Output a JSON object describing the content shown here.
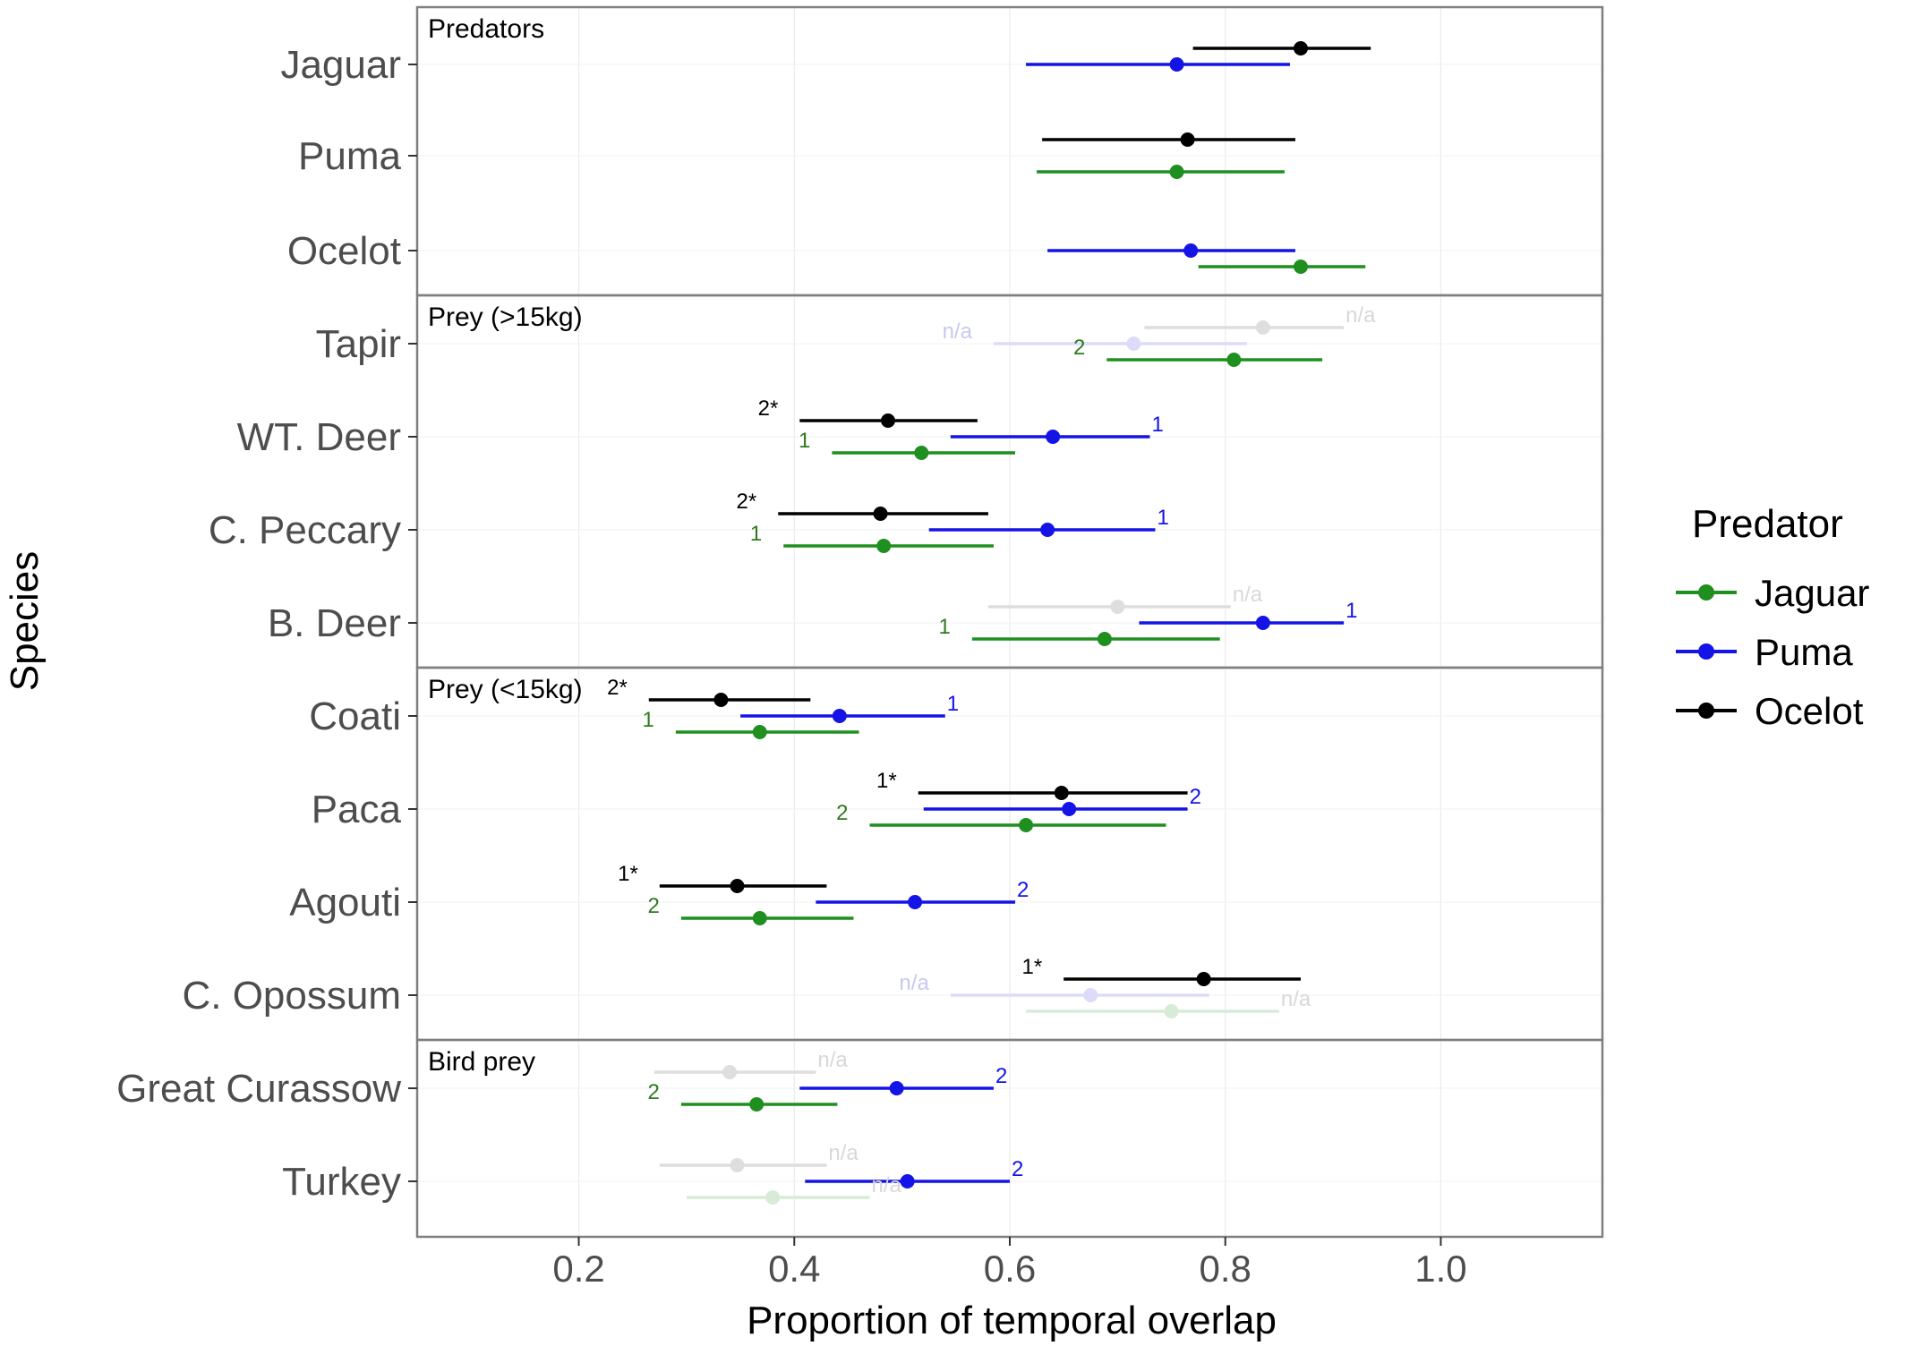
{
  "chart_data": {
    "type": "dot-interval",
    "xlabel": "Proportion of temporal overlap",
    "ylabel": "Species",
    "xlim": [
      0.05,
      1.15
    ],
    "xticks": [
      "0.2",
      "0.4",
      "0.6",
      "0.8",
      "1.0"
    ],
    "xtick_values": [
      0.2,
      0.4,
      0.6,
      0.8,
      1.0
    ],
    "legend": {
      "title": "Predator",
      "position": "right",
      "entries": [
        {
          "name": "Jaguar",
          "color": "#1f8f1f"
        },
        {
          "name": "Puma",
          "color": "#1414e6"
        },
        {
          "name": "Ocelot",
          "color": "#000000"
        }
      ]
    },
    "panels": [
      {
        "label": "Predators",
        "species": [
          {
            "name": "Jaguar",
            "points": [
              {
                "predator": "Ocelot",
                "mean": 0.87,
                "low": 0.77,
                "high": 0.935,
                "faded": false,
                "label": ""
              },
              {
                "predator": "Puma",
                "mean": 0.755,
                "low": 0.615,
                "high": 0.86,
                "faded": false,
                "label": ""
              }
            ]
          },
          {
            "name": "Puma",
            "points": [
              {
                "predator": "Ocelot",
                "mean": 0.765,
                "low": 0.63,
                "high": 0.865,
                "faded": false,
                "label": ""
              },
              {
                "predator": "Jaguar",
                "mean": 0.755,
                "low": 0.625,
                "high": 0.855,
                "faded": false,
                "label": ""
              }
            ]
          },
          {
            "name": "Ocelot",
            "points": [
              {
                "predator": "Puma",
                "mean": 0.768,
                "low": 0.635,
                "high": 0.865,
                "faded": false,
                "label": ""
              },
              {
                "predator": "Jaguar",
                "mean": 0.87,
                "low": 0.775,
                "high": 0.93,
                "faded": false,
                "label": ""
              }
            ]
          }
        ]
      },
      {
        "label": "Prey (>15kg)",
        "species": [
          {
            "name": "Tapir",
            "points": [
              {
                "predator": "Ocelot",
                "mean": 0.835,
                "low": 0.725,
                "high": 0.91,
                "faded": true,
                "label": "n/a"
              },
              {
                "predator": "Puma",
                "mean": 0.715,
                "low": 0.585,
                "high": 0.82,
                "faded": true,
                "label": "n/a"
              },
              {
                "predator": "Jaguar",
                "mean": 0.808,
                "low": 0.69,
                "high": 0.89,
                "faded": false,
                "label": "2"
              }
            ]
          },
          {
            "name": "WT. Deer",
            "points": [
              {
                "predator": "Ocelot",
                "mean": 0.487,
                "low": 0.405,
                "high": 0.57,
                "faded": false,
                "label": "2*"
              },
              {
                "predator": "Puma",
                "mean": 0.64,
                "low": 0.545,
                "high": 0.73,
                "faded": false,
                "label": "1"
              },
              {
                "predator": "Jaguar",
                "mean": 0.518,
                "low": 0.435,
                "high": 0.605,
                "faded": false,
                "label": "1"
              }
            ]
          },
          {
            "name": "C. Peccary",
            "points": [
              {
                "predator": "Ocelot",
                "mean": 0.48,
                "low": 0.385,
                "high": 0.58,
                "faded": false,
                "label": "2*"
              },
              {
                "predator": "Puma",
                "mean": 0.635,
                "low": 0.525,
                "high": 0.735,
                "faded": false,
                "label": "1"
              },
              {
                "predator": "Jaguar",
                "mean": 0.483,
                "low": 0.39,
                "high": 0.585,
                "faded": false,
                "label": "1"
              }
            ]
          },
          {
            "name": "B. Deer",
            "points": [
              {
                "predator": "Ocelot",
                "mean": 0.7,
                "low": 0.58,
                "high": 0.805,
                "faded": true,
                "label": "n/a"
              },
              {
                "predator": "Puma",
                "mean": 0.835,
                "low": 0.72,
                "high": 0.91,
                "faded": false,
                "label": "1"
              },
              {
                "predator": "Jaguar",
                "mean": 0.688,
                "low": 0.565,
                "high": 0.795,
                "faded": false,
                "label": "1"
              }
            ]
          }
        ]
      },
      {
        "label": "Prey (<15kg)",
        "species": [
          {
            "name": "Coati",
            "points": [
              {
                "predator": "Ocelot",
                "mean": 0.332,
                "low": 0.265,
                "high": 0.415,
                "faded": false,
                "label": "2*"
              },
              {
                "predator": "Puma",
                "mean": 0.442,
                "low": 0.35,
                "high": 0.54,
                "faded": false,
                "label": "1"
              },
              {
                "predator": "Jaguar",
                "mean": 0.368,
                "low": 0.29,
                "high": 0.46,
                "faded": false,
                "label": "1"
              }
            ]
          },
          {
            "name": "Paca",
            "points": [
              {
                "predator": "Ocelot",
                "mean": 0.648,
                "low": 0.515,
                "high": 0.765,
                "faded": false,
                "label": "1*"
              },
              {
                "predator": "Puma",
                "mean": 0.655,
                "low": 0.52,
                "high": 0.765,
                "faded": false,
                "label": "2"
              },
              {
                "predator": "Jaguar",
                "mean": 0.615,
                "low": 0.47,
                "high": 0.745,
                "faded": false,
                "label": "2"
              }
            ]
          },
          {
            "name": "Agouti",
            "points": [
              {
                "predator": "Ocelot",
                "mean": 0.347,
                "low": 0.275,
                "high": 0.43,
                "faded": false,
                "label": "1*"
              },
              {
                "predator": "Puma",
                "mean": 0.512,
                "low": 0.42,
                "high": 0.605,
                "faded": false,
                "label": "2"
              },
              {
                "predator": "Jaguar",
                "mean": 0.368,
                "low": 0.295,
                "high": 0.455,
                "faded": false,
                "label": "2"
              }
            ]
          },
          {
            "name": "C. Opossum",
            "points": [
              {
                "predator": "Ocelot",
                "mean": 0.78,
                "low": 0.65,
                "high": 0.87,
                "faded": false,
                "label": "1*"
              },
              {
                "predator": "Puma",
                "mean": 0.675,
                "low": 0.545,
                "high": 0.785,
                "faded": true,
                "label": "n/a"
              },
              {
                "predator": "Jaguar",
                "mean": 0.75,
                "low": 0.615,
                "high": 0.85,
                "faded": true,
                "label": "n/a"
              }
            ]
          }
        ]
      },
      {
        "label": "Bird prey",
        "species": [
          {
            "name": "Great Curassow",
            "points": [
              {
                "predator": "Ocelot",
                "mean": 0.34,
                "low": 0.27,
                "high": 0.42,
                "faded": true,
                "label": "n/a"
              },
              {
                "predator": "Puma",
                "mean": 0.495,
                "low": 0.405,
                "high": 0.585,
                "faded": false,
                "label": "2"
              },
              {
                "predator": "Jaguar",
                "mean": 0.365,
                "low": 0.295,
                "high": 0.44,
                "faded": false,
                "label": "2"
              }
            ]
          },
          {
            "name": "Turkey",
            "points": [
              {
                "predator": "Ocelot",
                "mean": 0.347,
                "low": 0.275,
                "high": 0.43,
                "faded": true,
                "label": "n/a"
              },
              {
                "predator": "Puma",
                "mean": 0.505,
                "low": 0.41,
                "high": 0.6,
                "faded": false,
                "label": "2"
              },
              {
                "predator": "Jaguar",
                "mean": 0.38,
                "low": 0.3,
                "high": 0.47,
                "faded": true,
                "label": "n/a"
              }
            ]
          }
        ]
      }
    ]
  }
}
